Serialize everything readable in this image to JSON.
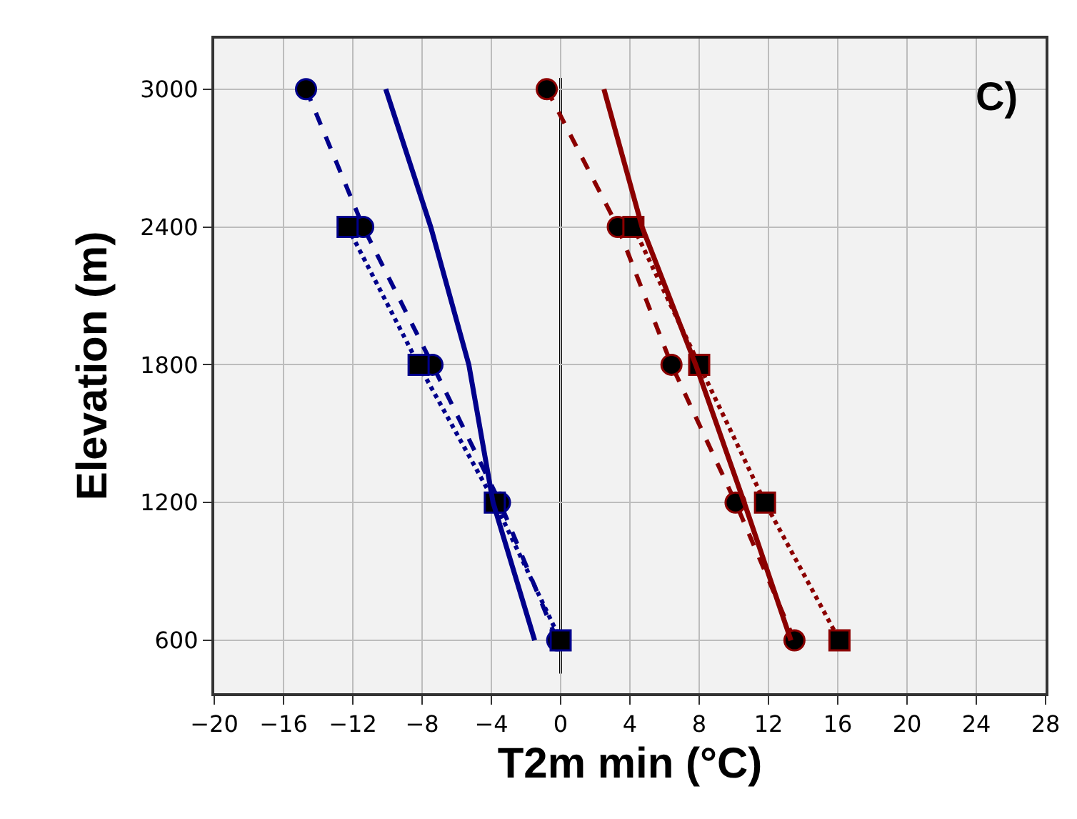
{
  "chart_data": {
    "type": "line",
    "xlabel": "T2m min (°C)",
    "ylabel": "Elevation (m)",
    "annotations": [
      "C)"
    ],
    "xlim": [
      -20,
      28
    ],
    "xticks": [
      -20,
      -16,
      -12,
      -8,
      -4,
      0,
      4,
      8,
      12,
      16,
      20,
      24,
      28
    ],
    "ylim": [
      370,
      3220
    ],
    "yticks": [
      600,
      1200,
      1800,
      2400,
      3000
    ],
    "grid": true,
    "ref_lines": [
      {
        "axis": "x",
        "value": 0,
        "color": "#000000",
        "line_style": "solid"
      }
    ],
    "series": [
      {
        "color": "#00008b",
        "line_style": "dashed",
        "marker": "circle",
        "x": [
          -14.7,
          -11.4,
          -7.4,
          -3.5,
          -0.2
        ],
        "values": [
          3000,
          2400,
          1800,
          1200,
          600
        ]
      },
      {
        "color": "#00008b",
        "line_style": "dotted",
        "marker": "square",
        "x": [
          -12.3,
          -8.2,
          -3.8,
          0
        ],
        "values": [
          2400,
          1800,
          1200,
          600
        ]
      },
      {
        "color": "#00008b",
        "line_style": "solid",
        "marker": "none",
        "x": [
          -10.1,
          -7.5,
          -5.3,
          -3.9,
          -1.5
        ],
        "values": [
          3000,
          2400,
          1800,
          1200,
          600
        ]
      },
      {
        "color": "#8b0000",
        "line_style": "dashed",
        "marker": "circle",
        "x": [
          -0.8,
          3.3,
          6.4,
          10.1,
          13.5
        ],
        "values": [
          3000,
          2400,
          1800,
          1200,
          600
        ]
      },
      {
        "color": "#8b0000",
        "line_style": "dotted",
        "marker": "square",
        "x": [
          4.2,
          8.0,
          11.8,
          16.1
        ],
        "values": [
          2400,
          1800,
          1200,
          600
        ]
      },
      {
        "color": "#8b0000",
        "line_style": "solid",
        "marker": "none",
        "x": [
          2.5,
          4.7,
          7.8,
          10.6,
          13.3
        ],
        "values": [
          3000,
          2400,
          1800,
          1200,
          600
        ]
      }
    ]
  }
}
